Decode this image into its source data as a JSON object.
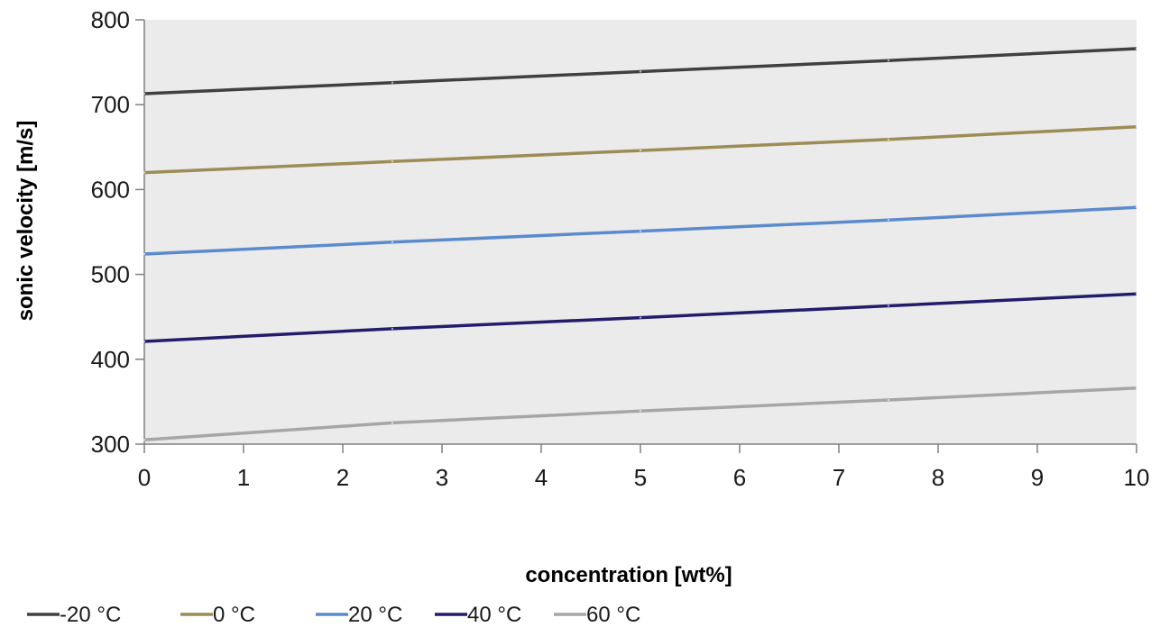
{
  "chart_data": {
    "type": "line",
    "title": "",
    "xlabel": "concentration [wt%]",
    "ylabel": "sonic velocity [m/s]",
    "xlim": [
      0,
      10
    ],
    "ylim": [
      300,
      800
    ],
    "x_ticks": [
      0,
      1,
      2,
      3,
      4,
      5,
      6,
      7,
      8,
      9,
      10
    ],
    "y_ticks": [
      300,
      400,
      500,
      600,
      700,
      800
    ],
    "grid": false,
    "plot_background": "#ebebeb",
    "legend_position": "bottom-left",
    "x": [
      0,
      2.5,
      5,
      7.5,
      10
    ],
    "series": [
      {
        "name": "-20 °C",
        "color": "#404040",
        "values": [
          713,
          726,
          739,
          752,
          766
        ]
      },
      {
        "name": "0 °C",
        "color": "#9c8c55",
        "values": [
          620,
          633,
          646,
          659,
          674
        ]
      },
      {
        "name": "20 °C",
        "color": "#5b8acd",
        "values": [
          524,
          538,
          551,
          564,
          579
        ]
      },
      {
        "name": "40 °C",
        "color": "#221c6b",
        "values": [
          421,
          436,
          449,
          463,
          477
        ]
      },
      {
        "name": "60 °C",
        "color": "#a6a6a6",
        "values": [
          305,
          325,
          339,
          352,
          366
        ]
      }
    ]
  }
}
